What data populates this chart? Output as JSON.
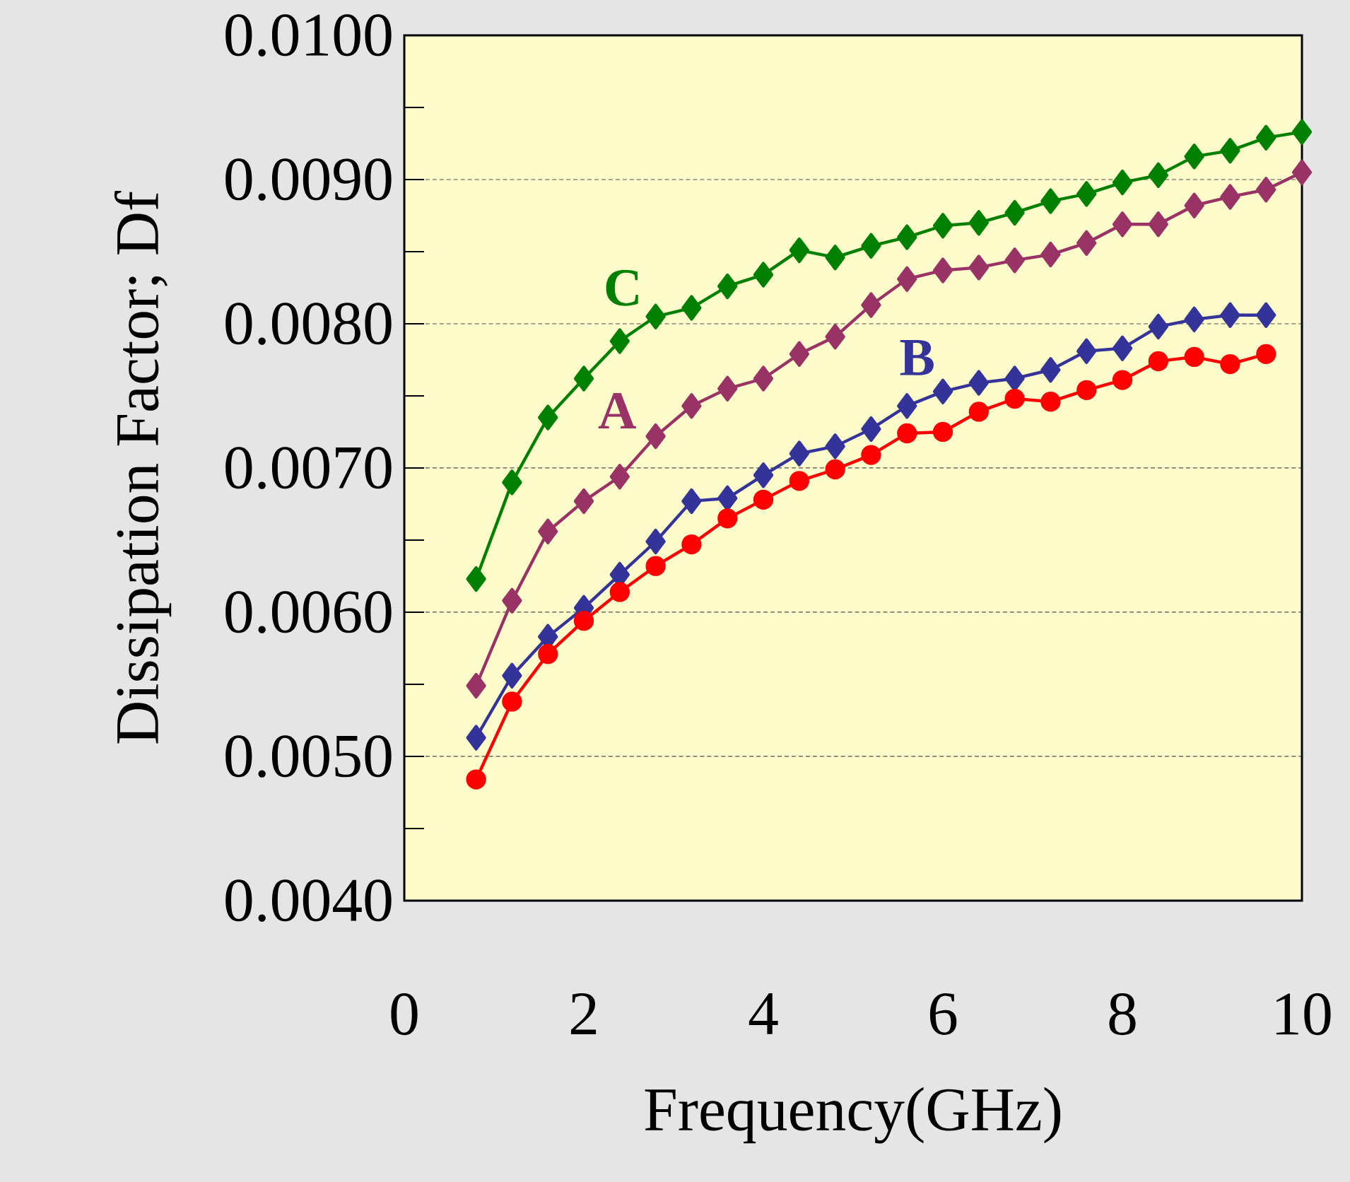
{
  "chart_data": {
    "type": "line",
    "xlabel": "Frequency(GHz)",
    "ylabel": "Dissipation Factor; Df",
    "xlim": [
      0,
      10
    ],
    "xticks": [
      0,
      2,
      4,
      6,
      8,
      10
    ],
    "ylim": [
      0.004,
      0.01
    ],
    "yticks": [
      {
        "value": 0.004,
        "label": "0.0040"
      },
      {
        "value": 0.0045,
        "label": null
      },
      {
        "value": 0.005,
        "label": "0.0050"
      },
      {
        "value": 0.0055,
        "label": null
      },
      {
        "value": 0.006,
        "label": "0.0060"
      },
      {
        "value": 0.0065,
        "label": null
      },
      {
        "value": 0.007,
        "label": "0.0070"
      },
      {
        "value": 0.0075,
        "label": null
      },
      {
        "value": 0.008,
        "label": "0.0080"
      },
      {
        "value": 0.0085,
        "label": null
      },
      {
        "value": 0.009,
        "label": "0.0090"
      },
      {
        "value": 0.0095,
        "label": null
      },
      {
        "value": 0.01,
        "label": "0.0100"
      }
    ],
    "grid": "y",
    "line_style": "solid",
    "series": [
      {
        "name": "C",
        "color": "#008000",
        "marker": "diamond",
        "x": [
          0.8,
          1.2,
          1.6,
          2.0,
          2.4,
          2.8,
          3.2,
          3.6,
          4.0,
          4.4,
          4.8,
          5.2,
          5.6,
          6.0,
          6.4,
          6.8,
          7.2,
          7.6,
          8.0,
          8.4,
          8.8,
          9.2,
          9.6,
          10.0
        ],
        "values": [
          0.00623,
          0.0069,
          0.00735,
          0.00762,
          0.00788,
          0.00805,
          0.00811,
          0.00826,
          0.00834,
          0.00851,
          0.00846,
          0.00854,
          0.0086,
          0.00868,
          0.0087,
          0.00877,
          0.00885,
          0.0089,
          0.00898,
          0.00903,
          0.00916,
          0.0092,
          0.00929,
          0.00933
        ]
      },
      {
        "name": "A",
        "color": "#993366",
        "marker": "diamond",
        "x": [
          0.8,
          1.2,
          1.6,
          2.0,
          2.4,
          2.8,
          3.2,
          3.6,
          4.0,
          4.4,
          4.8,
          5.2,
          5.6,
          6.0,
          6.4,
          6.8,
          7.2,
          7.6,
          8.0,
          8.4,
          8.8,
          9.2,
          9.6,
          10.0
        ],
        "values": [
          0.00549,
          0.00608,
          0.00656,
          0.00677,
          0.00694,
          0.00722,
          0.00743,
          0.00755,
          0.00762,
          0.00779,
          0.00791,
          0.00813,
          0.00831,
          0.00837,
          0.00839,
          0.00844,
          0.00848,
          0.00856,
          0.00869,
          0.00869,
          0.00882,
          0.00888,
          0.00893,
          0.00905
        ]
      },
      {
        "name": "B",
        "color": "#333399",
        "marker": "diamond",
        "x": [
          0.8,
          1.2,
          1.6,
          2.0,
          2.4,
          2.8,
          3.2,
          3.6,
          4.0,
          4.4,
          4.8,
          5.2,
          5.6,
          6.0,
          6.4,
          6.8,
          7.2,
          7.6,
          8.0,
          8.4,
          8.8,
          9.2,
          9.6
        ],
        "values": [
          0.00513,
          0.00556,
          0.00583,
          0.00603,
          0.00626,
          0.00649,
          0.00677,
          0.00679,
          0.00695,
          0.0071,
          0.00715,
          0.00727,
          0.00743,
          0.00753,
          0.00759,
          0.00762,
          0.00768,
          0.00781,
          0.00783,
          0.00798,
          0.00803,
          0.00806,
          0.00806
        ]
      },
      {
        "color": "#ff0000",
        "marker": "circle",
        "x": [
          0.8,
          1.2,
          1.6,
          2.0,
          2.4,
          2.8,
          3.2,
          3.6,
          4.0,
          4.4,
          4.8,
          5.2,
          5.6,
          6.0,
          6.4,
          6.8,
          7.2,
          7.6,
          8.0,
          8.4,
          8.8,
          9.2,
          9.6
        ],
        "values": [
          0.00484,
          0.00538,
          0.00571,
          0.00594,
          0.00614,
          0.00632,
          0.00647,
          0.00665,
          0.00678,
          0.00691,
          0.00699,
          0.00709,
          0.00724,
          0.00725,
          0.00739,
          0.00748,
          0.00746,
          0.00754,
          0.00761,
          0.00774,
          0.00777,
          0.00772,
          0.00779
        ]
      }
    ]
  }
}
